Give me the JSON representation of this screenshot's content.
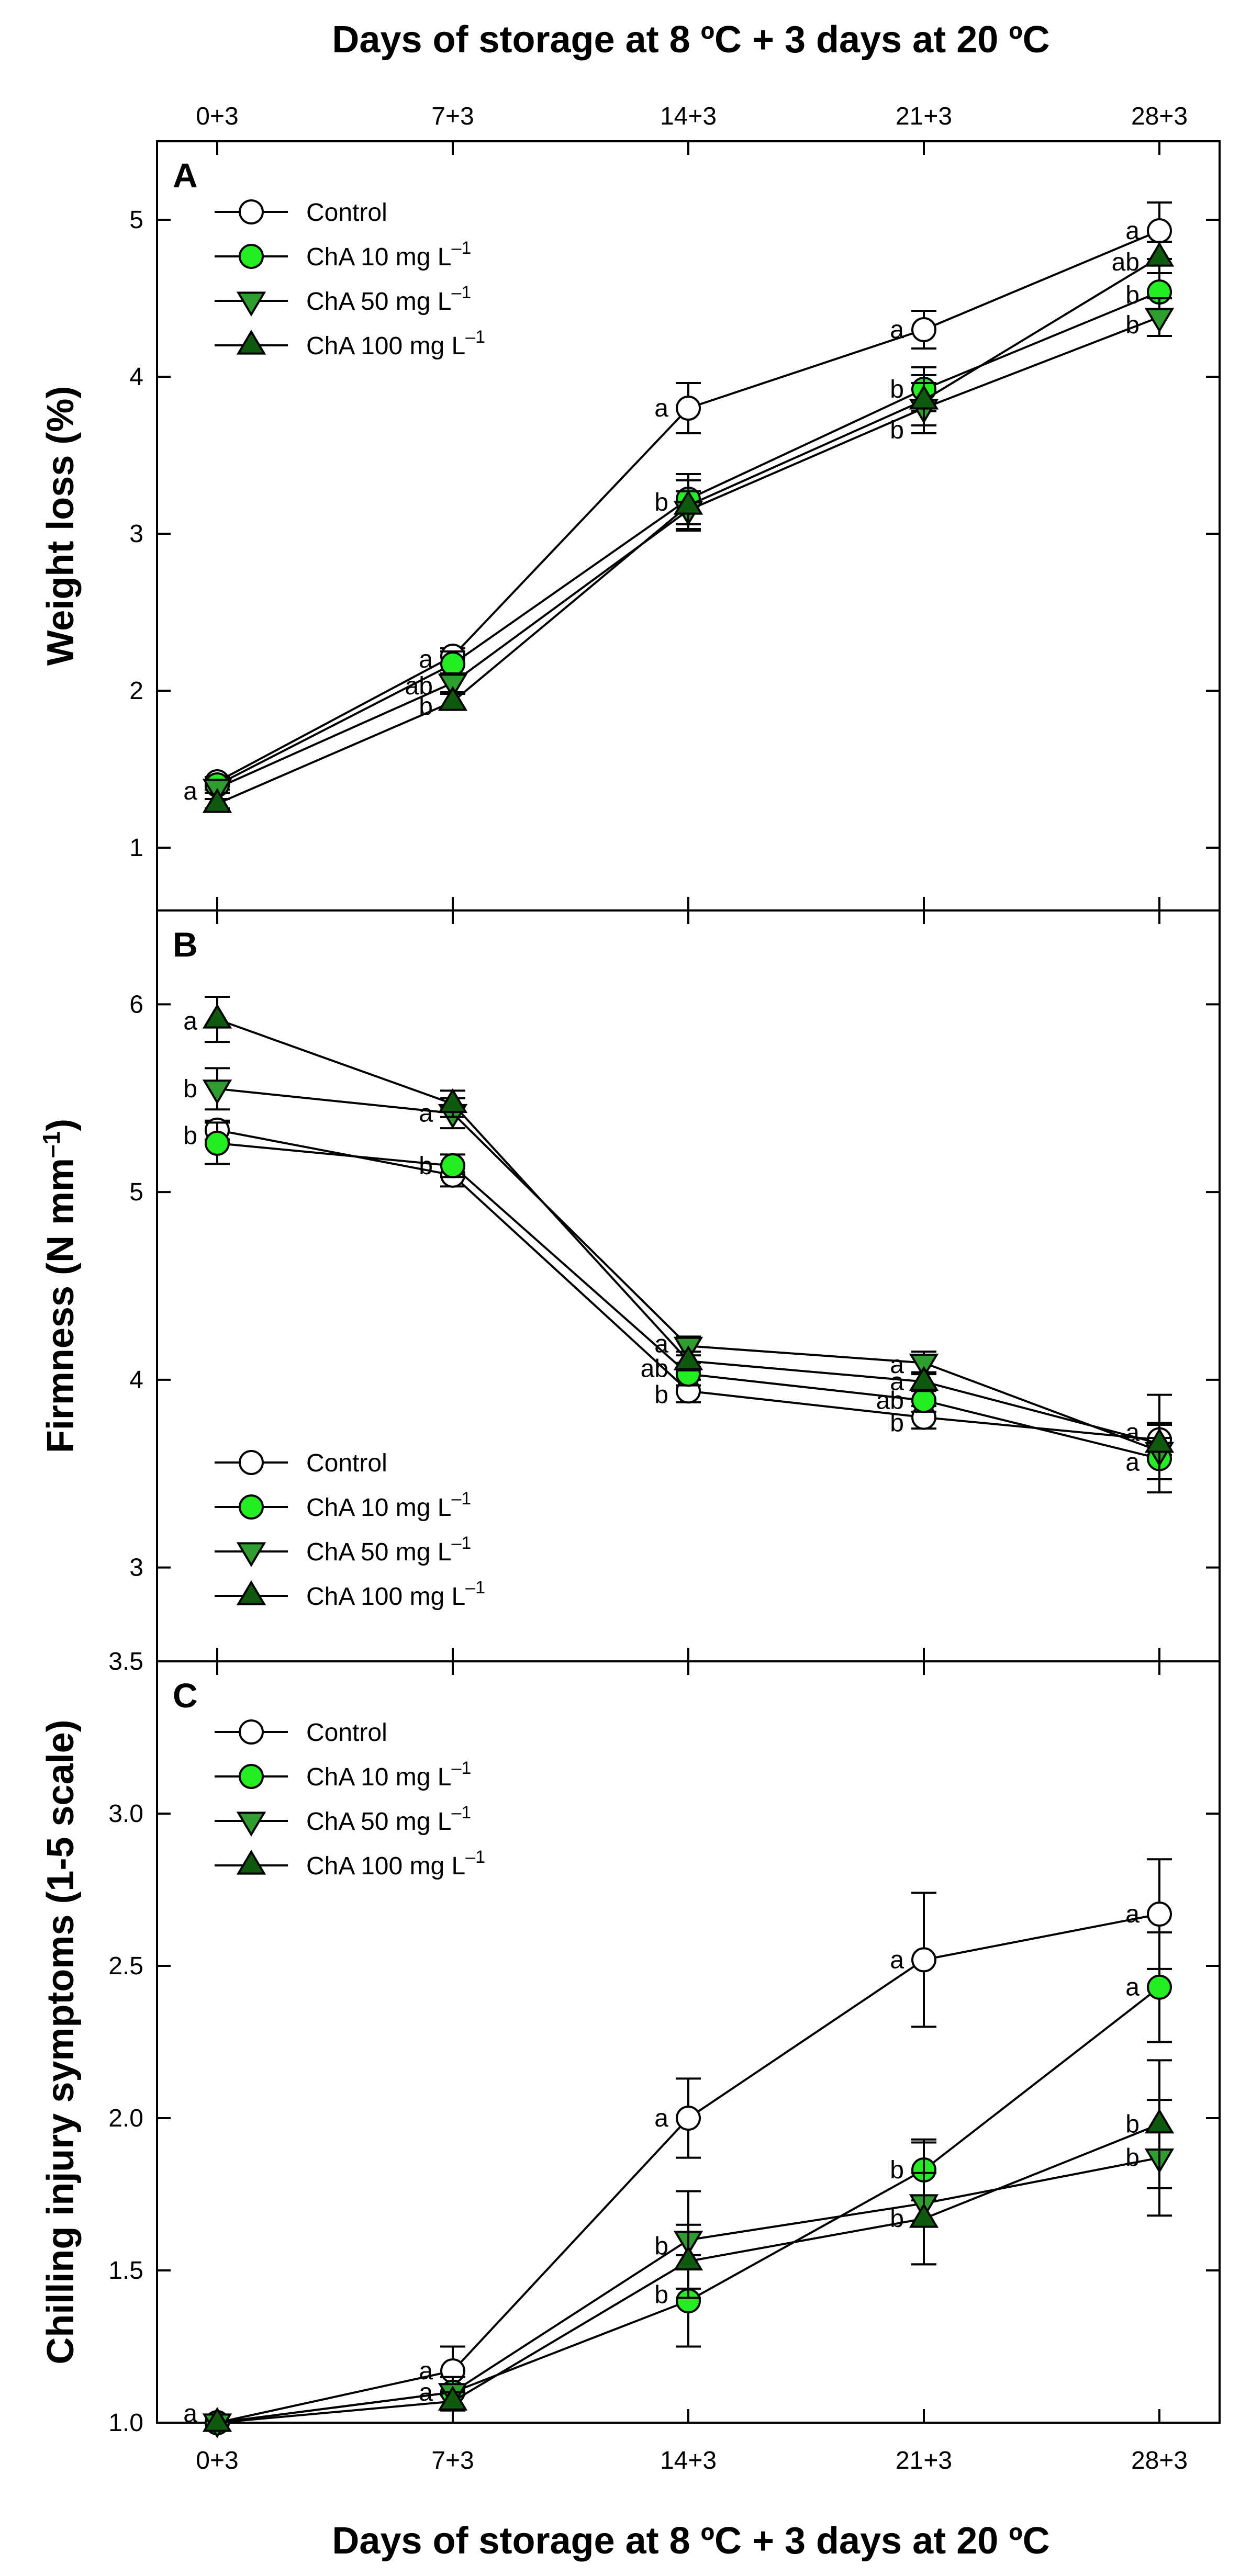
{
  "figure": {
    "top_title": "Days of storage at 8 ºC + 3 days at 20 ºC",
    "bottom_title": "Days of storage at 8 ºC + 3 days at 20 ºC",
    "x_categories": [
      "0+3",
      "7+3",
      "14+3",
      "21+3",
      "28+3"
    ]
  },
  "styles": {
    "control_color": "#ffffff",
    "cha10_color": "#22ee22",
    "cha50_color": "#2f9e2f",
    "cha100_color": "#0f5a0f",
    "line_color": "#000000"
  },
  "chart_data": [
    {
      "type": "line",
      "panel": "A",
      "ylabel": "Weight loss (%)",
      "ylim": [
        0.6,
        5.5
      ],
      "yticks": [
        1,
        2,
        3,
        4,
        5
      ],
      "ytick_labels": [
        "1",
        "2",
        "3",
        "4",
        "5"
      ],
      "categories": [
        "0+3",
        "7+3",
        "14+3",
        "21+3",
        "28+3"
      ],
      "legend_position": "top-left",
      "series": [
        {
          "name": "Control",
          "unit_sup": "",
          "marker": "circle",
          "color": "#ffffff",
          "values": [
            1.42,
            2.22,
            3.8,
            4.3,
            4.93
          ],
          "errors": [
            0.03,
            0.05,
            0.16,
            0.12,
            0.18
          ]
        },
        {
          "name": "ChA 10 mg L",
          "unit_sup": "–1",
          "marker": "circle",
          "color": "#22ee22",
          "values": [
            1.4,
            2.17,
            3.22,
            3.92,
            4.54
          ],
          "errors": [
            0.03,
            0.08,
            0.16,
            0.14,
            0.12
          ]
        },
        {
          "name": "ChA 50 mg L",
          "unit_sup": "–1",
          "marker": "triangle-down",
          "color": "#2f9e2f",
          "values": [
            1.38,
            2.05,
            3.15,
            3.8,
            4.38
          ],
          "errors": [
            0.03,
            0.06,
            0.12,
            0.16,
            0.12
          ]
        },
        {
          "name": "ChA 100 mg L",
          "unit_sup": "–1",
          "marker": "triangle-up",
          "color": "#0f5a0f",
          "values": [
            1.28,
            1.93,
            3.18,
            3.85,
            4.76
          ],
          "errors": [
            0.03,
            0.05,
            0.16,
            0.16,
            0.1
          ]
        }
      ],
      "significance": [
        {
          "x": 0,
          "y": 1.36,
          "text": "a"
        },
        {
          "x": 1,
          "y": 2.2,
          "text": "a"
        },
        {
          "x": 1,
          "y": 2.03,
          "text": "ab"
        },
        {
          "x": 1,
          "y": 1.9,
          "text": "b"
        },
        {
          "x": 2,
          "y": 3.8,
          "text": "a"
        },
        {
          "x": 2,
          "y": 3.2,
          "text": "b"
        },
        {
          "x": 3,
          "y": 4.3,
          "text": "a"
        },
        {
          "x": 3,
          "y": 3.92,
          "text": "b"
        },
        {
          "x": 3,
          "y": 3.66,
          "text": "b"
        },
        {
          "x": 4,
          "y": 4.93,
          "text": "a"
        },
        {
          "x": 4,
          "y": 4.73,
          "text": "ab"
        },
        {
          "x": 4,
          "y": 4.52,
          "text": "b"
        },
        {
          "x": 4,
          "y": 4.33,
          "text": "b"
        }
      ]
    },
    {
      "type": "line",
      "panel": "B",
      "ylabel": "Firmness (N mm",
      "ylabel_sup": "–1",
      "ylabel_end": ")",
      "ylim": [
        2.5,
        6.5
      ],
      "yticks": [
        3,
        4,
        5,
        6
      ],
      "ytick_labels": [
        "3",
        "4",
        "5",
        "6"
      ],
      "categories": [
        "0+3",
        "7+3",
        "14+3",
        "21+3",
        "28+3"
      ],
      "legend_position": "bottom-left",
      "series": [
        {
          "name": "Control",
          "unit_sup": "",
          "marker": "circle",
          "color": "#ffffff",
          "values": [
            5.33,
            5.09,
            3.94,
            3.8,
            3.68
          ],
          "errors": [
            0.05,
            0.06,
            0.06,
            0.06,
            0.08
          ]
        },
        {
          "name": "ChA 10 mg L",
          "unit_sup": "–1",
          "marker": "circle",
          "color": "#22ee22",
          "values": [
            5.26,
            5.14,
            4.03,
            3.89,
            3.58
          ],
          "errors": [
            0.11,
            0.06,
            0.06,
            0.06,
            0.11
          ]
        },
        {
          "name": "ChA 50 mg L",
          "unit_sup": "–1",
          "marker": "triangle-down",
          "color": "#2f9e2f",
          "values": [
            5.55,
            5.42,
            4.18,
            4.09,
            3.62
          ],
          "errors": [
            0.11,
            0.08,
            0.05,
            0.06,
            0.15
          ]
        },
        {
          "name": "ChA 100 mg L",
          "unit_sup": "–1",
          "marker": "triangle-up",
          "color": "#0f5a0f",
          "values": [
            5.92,
            5.47,
            4.1,
            3.99,
            3.66
          ],
          "errors": [
            0.12,
            0.07,
            0.05,
            0.05,
            0.26
          ]
        }
      ],
      "significance": [
        {
          "x": 0,
          "y": 5.91,
          "text": "a"
        },
        {
          "x": 0,
          "y": 5.55,
          "text": "b"
        },
        {
          "x": 0,
          "y": 5.3,
          "text": "b"
        },
        {
          "x": 1,
          "y": 5.42,
          "text": "a"
        },
        {
          "x": 1,
          "y": 5.14,
          "text": "b"
        },
        {
          "x": 2,
          "y": 4.19,
          "text": "a"
        },
        {
          "x": 2,
          "y": 4.06,
          "text": "ab"
        },
        {
          "x": 2,
          "y": 3.92,
          "text": "b"
        },
        {
          "x": 3,
          "y": 4.08,
          "text": "a"
        },
        {
          "x": 3,
          "y": 3.99,
          "text": "a"
        },
        {
          "x": 3,
          "y": 3.89,
          "text": "ab"
        },
        {
          "x": 3,
          "y": 3.77,
          "text": "b"
        },
        {
          "x": 4,
          "y": 3.72,
          "text": "a"
        },
        {
          "x": 4,
          "y": 3.56,
          "text": "a"
        }
      ]
    },
    {
      "type": "line",
      "panel": "C",
      "ylabel": "Chilling injury symptoms (1-5 scale)",
      "ylim": [
        1.0,
        3.5
      ],
      "yticks": [
        1.0,
        1.5,
        2.0,
        2.5,
        3.0,
        3.5
      ],
      "ytick_labels": [
        "1.0",
        "1.5",
        "2.0",
        "2.5",
        "3.0",
        "3.5"
      ],
      "categories": [
        "0+3",
        "7+3",
        "14+3",
        "21+3",
        "28+3"
      ],
      "legend_position": "top-left",
      "series": [
        {
          "name": "Control",
          "unit_sup": "",
          "marker": "circle",
          "color": "#ffffff",
          "values": [
            1.0,
            1.17,
            2.0,
            2.52,
            2.67
          ],
          "errors": [
            0.0,
            0.08,
            0.13,
            0.22,
            0.18
          ]
        },
        {
          "name": "ChA 10 mg L",
          "unit_sup": "–1",
          "marker": "circle",
          "color": "#22ee22",
          "values": [
            1.0,
            1.1,
            1.4,
            1.83,
            2.43
          ],
          "errors": [
            0.0,
            0.05,
            0.15,
            0.1,
            0.18
          ]
        },
        {
          "name": "ChA 50 mg L",
          "unit_sup": "–1",
          "marker": "triangle-down",
          "color": "#2f9e2f",
          "values": [
            1.0,
            1.1,
            1.6,
            1.72,
            1.87
          ],
          "errors": [
            0.0,
            0.05,
            0.16,
            0.2,
            0.19
          ]
        },
        {
          "name": "ChA 100 mg L",
          "unit_sup": "–1",
          "marker": "triangle-up",
          "color": "#0f5a0f",
          "values": [
            1.0,
            1.07,
            1.53,
            1.67,
            1.98
          ],
          "errors": [
            0.0,
            0.03,
            0.12,
            0.15,
            0.21
          ]
        }
      ],
      "significance": [
        {
          "x": 0,
          "y": 1.03,
          "text": "a"
        },
        {
          "x": 1,
          "y": 1.17,
          "text": "a"
        },
        {
          "x": 1,
          "y": 1.1,
          "text": "a"
        },
        {
          "x": 2,
          "y": 2.0,
          "text": "a"
        },
        {
          "x": 2,
          "y": 1.58,
          "text": "b"
        },
        {
          "x": 2,
          "y": 1.42,
          "text": "b"
        },
        {
          "x": 3,
          "y": 2.52,
          "text": "a"
        },
        {
          "x": 3,
          "y": 1.83,
          "text": "b"
        },
        {
          "x": 3,
          "y": 1.67,
          "text": "b"
        },
        {
          "x": 4,
          "y": 2.67,
          "text": "a"
        },
        {
          "x": 4,
          "y": 2.43,
          "text": "a"
        },
        {
          "x": 4,
          "y": 1.98,
          "text": "b"
        },
        {
          "x": 4,
          "y": 1.87,
          "text": "b"
        }
      ]
    }
  ]
}
